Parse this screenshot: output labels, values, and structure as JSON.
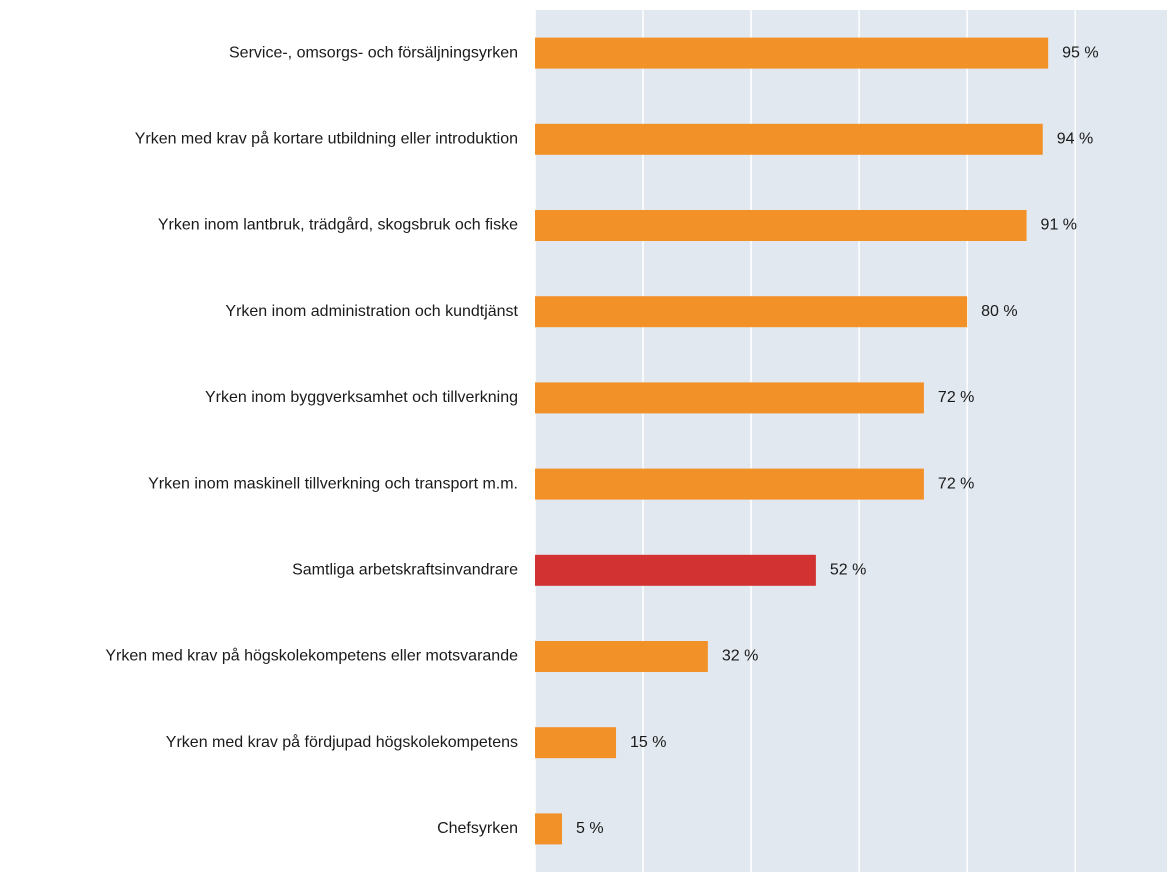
{
  "chart_data": {
    "type": "bar",
    "orientation": "horizontal",
    "categories": [
      "Service-, omsorgs- och försäljningsyrken",
      "Yrken med krav på kortare utbildning eller introduktion",
      "Yrken inom lantbruk, trädgård, skogsbruk och fiske",
      "Yrken inom administration och kundtjänst",
      "Yrken inom byggverksamhet och tillverkning",
      "Yrken inom maskinell tillverkning och transport m.m.",
      "Samtliga arbetskraftsinvandrare",
      "Yrken med krav på högskolekompetens eller motsvarande",
      "Yrken med krav på fördjupad högskolekompetens",
      "Chefsyrken"
    ],
    "values": [
      95,
      94,
      91,
      80,
      72,
      72,
      52,
      32,
      15,
      5
    ],
    "value_labels": [
      "95 %",
      "94 %",
      "91 %",
      "80 %",
      "72 %",
      "72 %",
      "52 %",
      "32 %",
      "15 %",
      "5 %"
    ],
    "colors": [
      "#f39129",
      "#f39129",
      "#f39129",
      "#f39129",
      "#f39129",
      "#f39129",
      "#d23232",
      "#f39129",
      "#f39129",
      "#f39129"
    ],
    "xlim": [
      0,
      117
    ],
    "xticks": [
      0,
      20,
      40,
      60,
      80,
      100
    ],
    "grid": true
  }
}
